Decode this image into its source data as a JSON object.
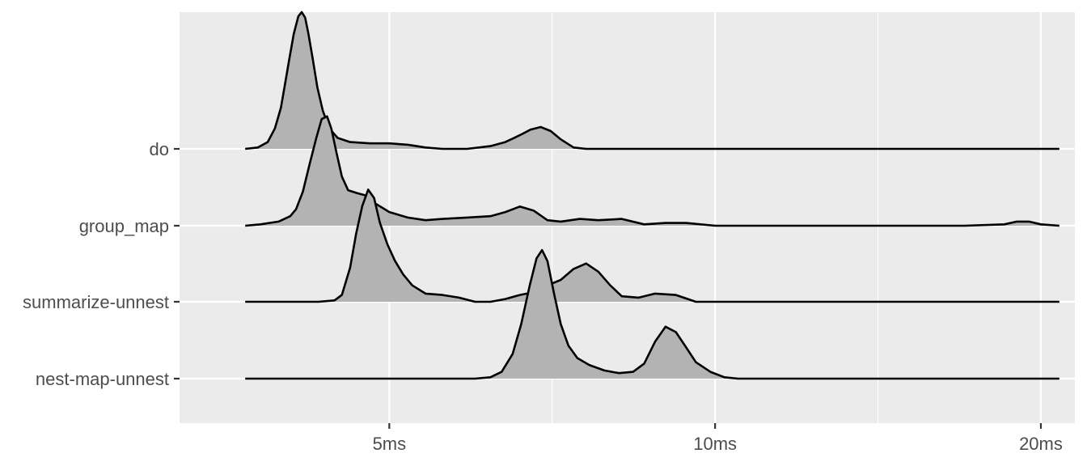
{
  "chart_data": {
    "type": "ridgeline",
    "title": "",
    "xlabel": "",
    "ylabel": "",
    "x_scale": "log10",
    "x_unit": "ms",
    "xlim": [
      3.2,
      21.5
    ],
    "x_ticks": [
      {
        "value": 5,
        "label": "5ms"
      },
      {
        "value": 10,
        "label": "10ms"
      },
      {
        "value": 20,
        "label": "20ms"
      }
    ],
    "x_minor_gridlines": [
      7.07,
      14.14
    ],
    "grid": true,
    "legend": "none",
    "fill_color": "#b3b3b3",
    "line_color": "#000000",
    "panel_color": "#ebebeb",
    "grid_color": "#ffffff",
    "series": [
      {
        "name": "do",
        "points": [
          [
            3.68,
            0.0
          ],
          [
            3.78,
            0.01
          ],
          [
            3.86,
            0.05
          ],
          [
            3.92,
            0.15
          ],
          [
            3.97,
            0.3
          ],
          [
            4.0,
            0.45
          ],
          [
            4.04,
            0.65
          ],
          [
            4.08,
            0.84
          ],
          [
            4.12,
            0.97
          ],
          [
            4.15,
            1.0
          ],
          [
            4.18,
            0.96
          ],
          [
            4.21,
            0.84
          ],
          [
            4.25,
            0.65
          ],
          [
            4.29,
            0.45
          ],
          [
            4.34,
            0.28
          ],
          [
            4.4,
            0.15
          ],
          [
            4.48,
            0.08
          ],
          [
            4.6,
            0.05
          ],
          [
            4.8,
            0.04
          ],
          [
            5.0,
            0.04
          ],
          [
            5.2,
            0.03
          ],
          [
            5.4,
            0.01
          ],
          [
            5.6,
            0.0
          ],
          [
            5.9,
            0.0
          ],
          [
            6.2,
            0.02
          ],
          [
            6.4,
            0.05
          ],
          [
            6.6,
            0.1
          ],
          [
            6.75,
            0.14
          ],
          [
            6.9,
            0.16
          ],
          [
            7.05,
            0.13
          ],
          [
            7.2,
            0.07
          ],
          [
            7.4,
            0.01
          ],
          [
            7.6,
            0.0
          ],
          [
            10.0,
            0.0
          ],
          [
            15.0,
            0.0
          ],
          [
            20.8,
            0.0
          ]
        ]
      },
      {
        "name": "group_map",
        "points": [
          [
            3.68,
            0.0
          ],
          [
            3.8,
            0.01
          ],
          [
            3.95,
            0.03
          ],
          [
            4.05,
            0.07
          ],
          [
            4.1,
            0.12
          ],
          [
            4.16,
            0.25
          ],
          [
            4.22,
            0.45
          ],
          [
            4.28,
            0.64
          ],
          [
            4.33,
            0.78
          ],
          [
            4.38,
            0.8
          ],
          [
            4.42,
            0.71
          ],
          [
            4.47,
            0.53
          ],
          [
            4.52,
            0.36
          ],
          [
            4.58,
            0.26
          ],
          [
            4.66,
            0.24
          ],
          [
            4.76,
            0.22
          ],
          [
            4.86,
            0.16
          ],
          [
            5.0,
            0.1
          ],
          [
            5.2,
            0.06
          ],
          [
            5.4,
            0.04
          ],
          [
            5.6,
            0.05
          ],
          [
            5.9,
            0.06
          ],
          [
            6.2,
            0.07
          ],
          [
            6.4,
            0.1
          ],
          [
            6.6,
            0.14
          ],
          [
            6.8,
            0.11
          ],
          [
            7.0,
            0.04
          ],
          [
            7.2,
            0.03
          ],
          [
            7.5,
            0.05
          ],
          [
            7.8,
            0.04
          ],
          [
            8.2,
            0.05
          ],
          [
            8.6,
            0.01
          ],
          [
            9.0,
            0.02
          ],
          [
            9.4,
            0.02
          ],
          [
            10.0,
            0.0
          ],
          [
            12.0,
            0.0
          ],
          [
            17.0,
            0.0
          ],
          [
            18.5,
            0.01
          ],
          [
            19.0,
            0.03
          ],
          [
            19.5,
            0.03
          ],
          [
            20.0,
            0.01
          ],
          [
            20.8,
            0.0
          ]
        ]
      },
      {
        "name": "summarize-unnest",
        "points": [
          [
            3.68,
            0.0
          ],
          [
            4.0,
            0.0
          ],
          [
            4.3,
            0.0
          ],
          [
            4.45,
            0.01
          ],
          [
            4.52,
            0.05
          ],
          [
            4.6,
            0.25
          ],
          [
            4.66,
            0.5
          ],
          [
            4.72,
            0.7
          ],
          [
            4.78,
            0.82
          ],
          [
            4.84,
            0.76
          ],
          [
            4.9,
            0.58
          ],
          [
            4.98,
            0.42
          ],
          [
            5.06,
            0.3
          ],
          [
            5.15,
            0.2
          ],
          [
            5.25,
            0.12
          ],
          [
            5.4,
            0.06
          ],
          [
            5.6,
            0.05
          ],
          [
            5.8,
            0.03
          ],
          [
            6.0,
            0.0
          ],
          [
            6.2,
            0.0
          ],
          [
            6.4,
            0.02
          ],
          [
            6.6,
            0.05
          ],
          [
            6.8,
            0.07
          ],
          [
            7.0,
            0.12
          ],
          [
            7.2,
            0.16
          ],
          [
            7.4,
            0.24
          ],
          [
            7.6,
            0.28
          ],
          [
            7.8,
            0.22
          ],
          [
            8.0,
            0.12
          ],
          [
            8.2,
            0.04
          ],
          [
            8.5,
            0.03
          ],
          [
            8.8,
            0.06
          ],
          [
            9.2,
            0.05
          ],
          [
            9.6,
            0.0
          ],
          [
            12.0,
            0.0
          ],
          [
            20.8,
            0.0
          ]
        ]
      },
      {
        "name": "nest-map-unnest",
        "points": [
          [
            3.68,
            0.0
          ],
          [
            5.5,
            0.0
          ],
          [
            6.0,
            0.0
          ],
          [
            6.2,
            0.01
          ],
          [
            6.35,
            0.05
          ],
          [
            6.5,
            0.18
          ],
          [
            6.62,
            0.4
          ],
          [
            6.74,
            0.68
          ],
          [
            6.84,
            0.88
          ],
          [
            6.92,
            0.94
          ],
          [
            7.0,
            0.86
          ],
          [
            7.1,
            0.62
          ],
          [
            7.2,
            0.4
          ],
          [
            7.32,
            0.24
          ],
          [
            7.46,
            0.15
          ],
          [
            7.65,
            0.1
          ],
          [
            7.9,
            0.06
          ],
          [
            8.15,
            0.04
          ],
          [
            8.4,
            0.05
          ],
          [
            8.6,
            0.11
          ],
          [
            8.8,
            0.27
          ],
          [
            9.0,
            0.38
          ],
          [
            9.2,
            0.34
          ],
          [
            9.4,
            0.23
          ],
          [
            9.6,
            0.12
          ],
          [
            9.9,
            0.05
          ],
          [
            10.2,
            0.01
          ],
          [
            10.5,
            0.0
          ],
          [
            15.0,
            0.0
          ],
          [
            20.8,
            0.0
          ]
        ]
      }
    ]
  }
}
